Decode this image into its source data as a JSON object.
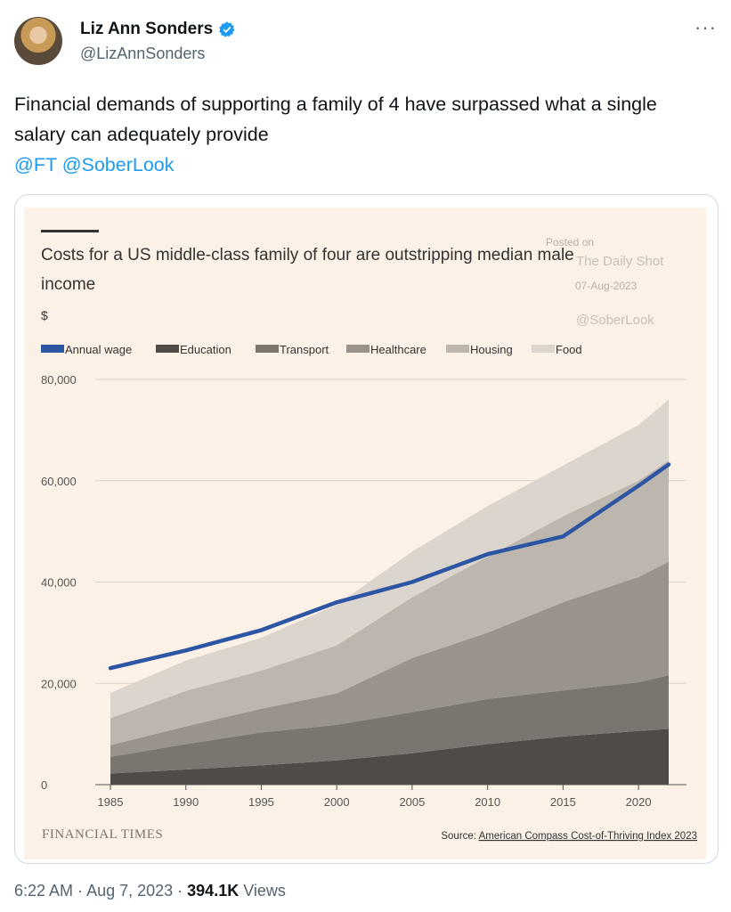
{
  "tweet": {
    "author_name": "Liz Ann Sonders",
    "author_handle": "@LizAnnSonders",
    "text": "Financial demands of supporting a family of 4 have surpassed what a single salary can adequately provide",
    "mentions": [
      "@FT",
      "@SoberLook"
    ],
    "time": "6:22 AM",
    "date": "Aug 7, 2023",
    "views_count": "394.1K",
    "views_label": "Views"
  },
  "watermark": {
    "posted_on": "Posted on",
    "site": "The Daily Shot",
    "date": "07-Aug-2023",
    "handle": "@SoberLook"
  },
  "chart_data": {
    "type": "area",
    "title": "Costs for a US middle-class family of four are outstripping median male income",
    "ylabel": "$",
    "ylim": [
      0,
      80000
    ],
    "yticks": [
      0,
      20000,
      40000,
      60000,
      80000
    ],
    "ytick_labels": [
      "0",
      "20,000",
      "40,000",
      "60,000",
      "80,000"
    ],
    "xticks": [
      1985,
      1990,
      1995,
      2000,
      2005,
      2010,
      2015,
      2020
    ],
    "xlim": [
      1985,
      2022
    ],
    "grid": true,
    "legend_position": "top-left",
    "source_label": "Source:",
    "source_text": "American Compass Cost-of-Thriving Index 2023",
    "publisher": "FINANCIAL TIMES",
    "x": [
      1985,
      1990,
      1995,
      2000,
      2005,
      2010,
      2015,
      2020,
      2022
    ],
    "stacked_series": [
      {
        "name": "Education",
        "color": "#4f4b47",
        "values": [
          2200,
          3000,
          3800,
          4800,
          6200,
          8000,
          9500,
          10600,
          11000
        ]
      },
      {
        "name": "Transport",
        "color": "#7b7570",
        "values": [
          3300,
          5000,
          6500,
          7000,
          8100,
          8900,
          9100,
          9600,
          10600
        ]
      },
      {
        "name": "Healthcare",
        "color": "#9a938c",
        "values": [
          2300,
          3500,
          4700,
          6200,
          10700,
          13100,
          17400,
          20800,
          22400
        ]
      },
      {
        "name": "Housing",
        "color": "#bdb6ae",
        "values": [
          5300,
          7000,
          7500,
          9500,
          12000,
          15000,
          17000,
          19000,
          20000
        ]
      },
      {
        "name": "Food",
        "color": "#dcd5cd",
        "values": [
          5000,
          6000,
          6500,
          8000,
          9000,
          10000,
          10000,
          11000,
          12000
        ]
      }
    ],
    "line_series": {
      "name": "Annual wage",
      "color": "#2c56a4",
      "values": [
        23000,
        26500,
        30500,
        36000,
        40000,
        45500,
        49000,
        59000,
        63200
      ]
    }
  }
}
